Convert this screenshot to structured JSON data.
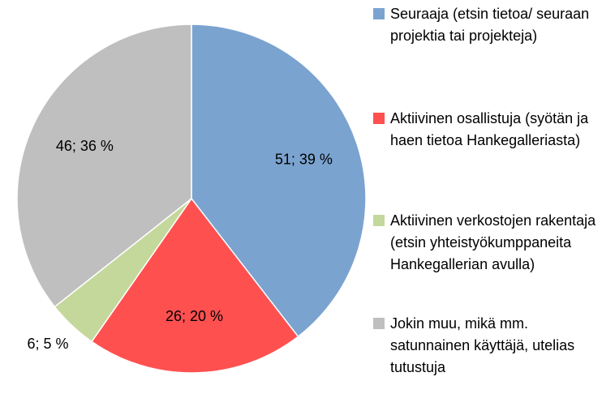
{
  "chart_data": {
    "type": "pie",
    "categories": [
      "Seuraaja (etsin tietoa/ seuraan projektia tai projekteja)",
      "Aktiivinen osallistuja (syötän ja haen tietoa Hankegalleriasta)",
      "Aktiivinen verkostojen rakentaja (etsin yhteistyökumppaneita Hankegallerian avulla)",
      "Jokin muu, mikä mm. satunnainen käyttäjä, utelias tutustuja"
    ],
    "values": [
      51,
      26,
      6,
      46
    ],
    "value_labels": [
      "51; 39 %",
      "26; 20 %",
      "6; 5 %",
      "46; 36 %"
    ],
    "colors": [
      "#7ba3d0",
      "#ff5050",
      "#c4d89b",
      "#bfbfbf"
    ],
    "legend": "right"
  }
}
